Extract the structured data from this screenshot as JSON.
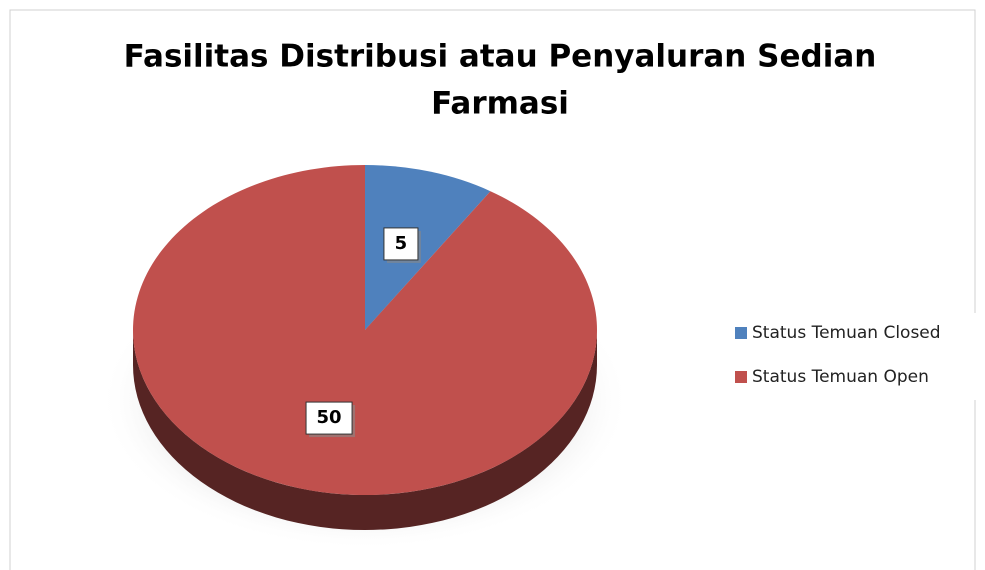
{
  "chart_data": {
    "type": "pie",
    "title": [
      "Fasilitas Distribusi atau Penyaluran Sedian",
      "Farmasi"
    ],
    "categories": [
      "Status Temuan Closed",
      "Status Temuan Open"
    ],
    "values": [
      5,
      50
    ],
    "colors": [
      "#4f81bd",
      "#c0504d"
    ],
    "legend": "right"
  }
}
